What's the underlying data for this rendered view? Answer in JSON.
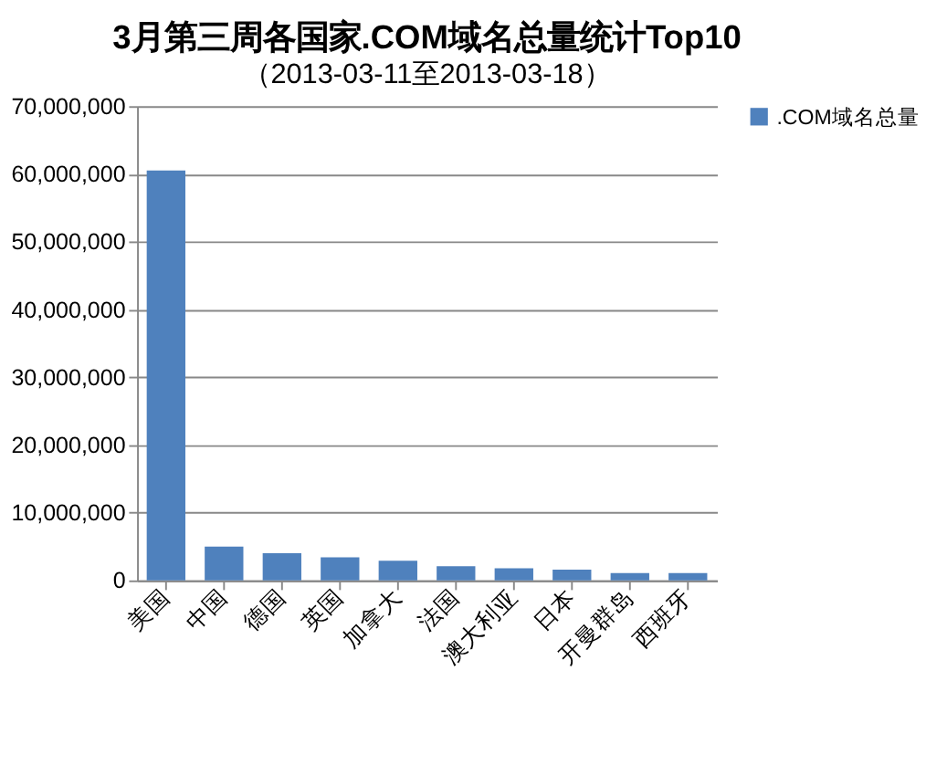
{
  "chart_data": {
    "type": "bar",
    "title": "3月第三周各国家.COM域名总量统计Top10",
    "subtitle": "（2013-03-11至2013-03-18）",
    "categories": [
      "美国",
      "中国",
      "德国",
      "英国",
      "加拿大",
      "法国",
      "澳大利亚",
      "日本",
      "开曼群岛",
      "西班牙"
    ],
    "series": [
      {
        "name": ".COM域名总量",
        "color": "#4f81bd",
        "values": [
          60500000,
          5000000,
          4000000,
          3400000,
          2900000,
          2100000,
          1800000,
          1600000,
          1100000,
          1100000
        ]
      }
    ],
    "ylim": [
      0,
      70000000
    ],
    "yticks": [
      0,
      {
        "value": 10000000,
        "label": "10,000,000"
      },
      {
        "value": 20000000,
        "label": "20,000,000"
      },
      {
        "value": 30000000,
        "label": "30,000,000"
      },
      {
        "value": 40000000,
        "label": "40,000,000"
      },
      {
        "value": 50000000,
        "label": "50,000,000"
      },
      {
        "value": 60000000,
        "label": "60,000,000"
      },
      {
        "value": 70000000,
        "label": "70,000,000"
      }
    ],
    "grid": "y",
    "legend": "right"
  }
}
